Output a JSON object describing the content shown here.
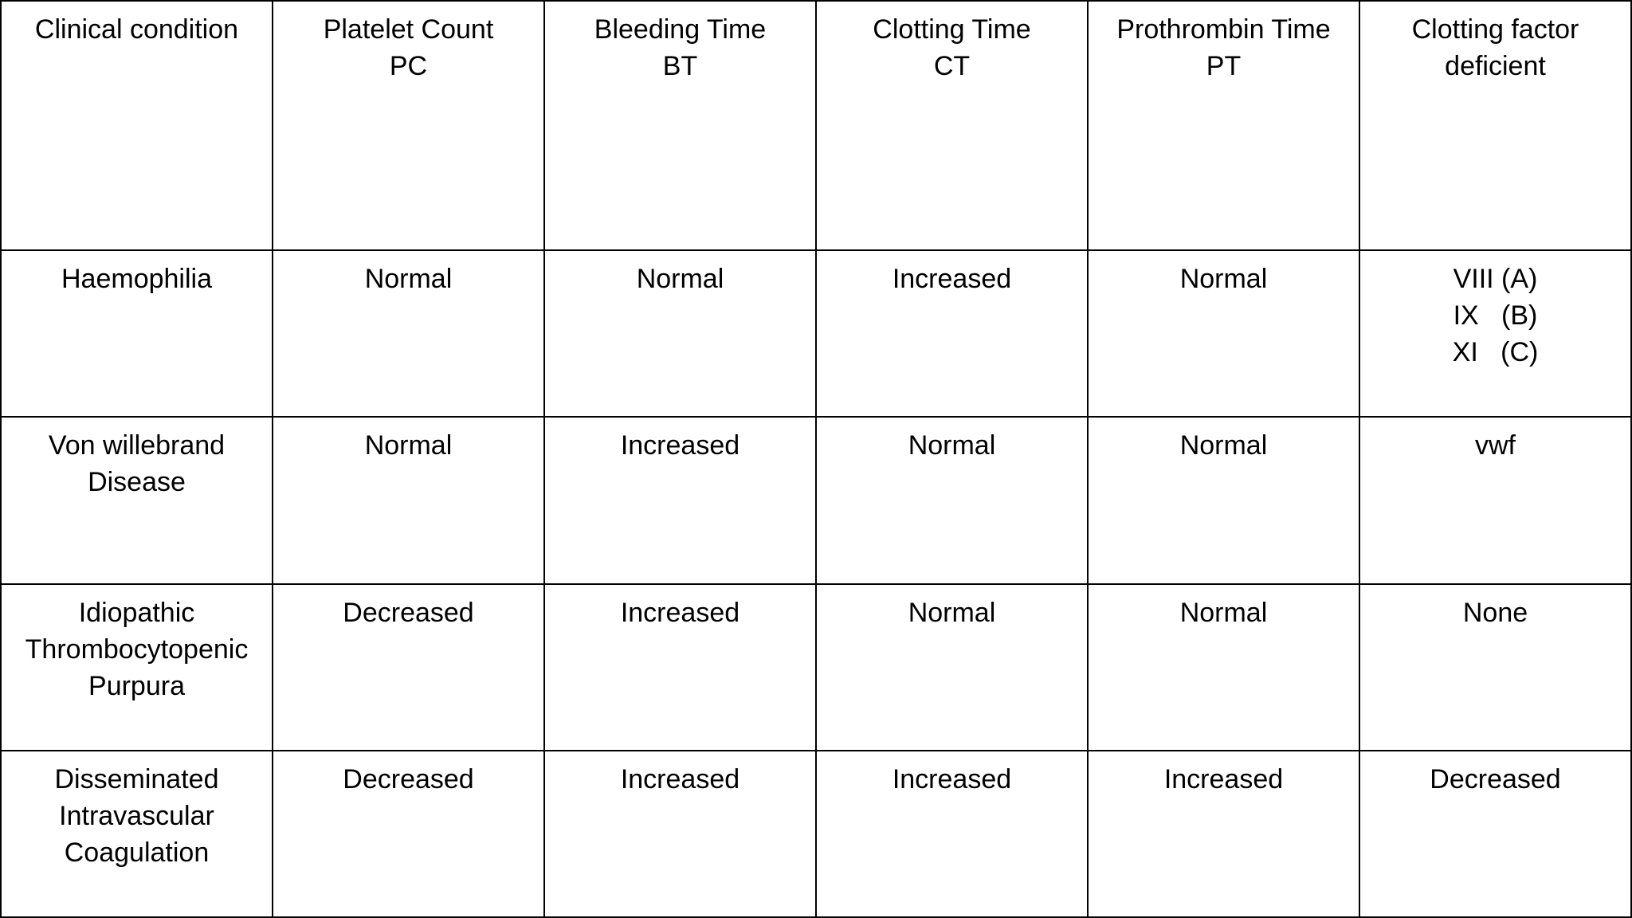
{
  "table": {
    "header": [
      [
        "Clinical condition"
      ],
      [
        "Platelet Count",
        "PC"
      ],
      [
        "Bleeding Time",
        "BT"
      ],
      [
        "Clotting Time",
        "CT"
      ],
      [
        "Prothrombin Time",
        "PT"
      ],
      [
        "Clotting factor",
        "deficient"
      ]
    ],
    "rows": [
      [
        [
          "Haemophilia"
        ],
        [
          "Normal"
        ],
        [
          "Normal"
        ],
        [
          "Increased"
        ],
        [
          "Normal"
        ],
        [
          "VIII (A)",
          "IX   (B)",
          "XI   (C)"
        ]
      ],
      [
        [
          "Von willebrand",
          "Disease"
        ],
        [
          "Normal"
        ],
        [
          "Increased"
        ],
        [
          "Normal"
        ],
        [
          "Normal"
        ],
        [
          "vwf"
        ]
      ],
      [
        [
          "Idiopathic",
          "Thrombocytopenic",
          "Purpura"
        ],
        [
          "Decreased"
        ],
        [
          "Increased"
        ],
        [
          "Normal"
        ],
        [
          "Normal"
        ],
        [
          "None"
        ]
      ],
      [
        [
          "Disseminated",
          "Intravascular",
          "Coagulation"
        ],
        [
          "Decreased"
        ],
        [
          "Increased"
        ],
        [
          "Increased"
        ],
        [
          "Increased"
        ],
        [
          "Decreased"
        ]
      ]
    ]
  }
}
